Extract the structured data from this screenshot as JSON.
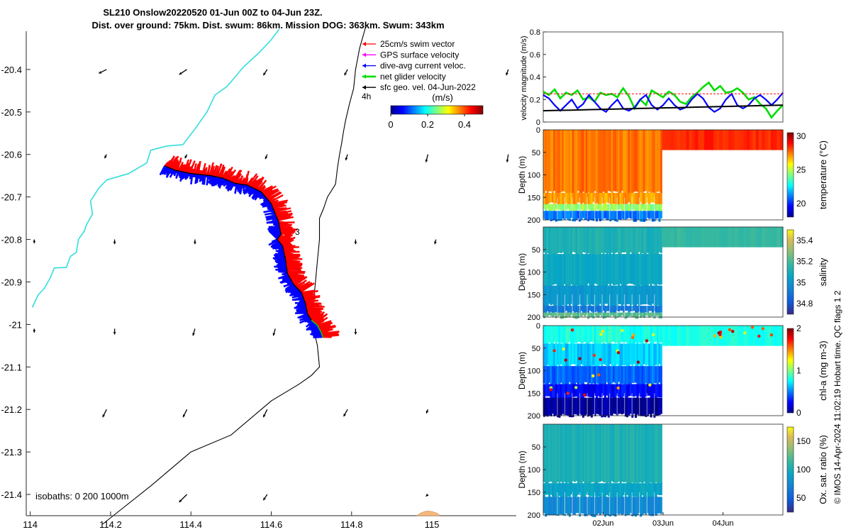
{
  "title": {
    "line1": "SL210 Onslow20220520 01-Jun 00Z to 04-Jun 23Z.",
    "line2": "Dist. over ground: 75km. Dist. swum: 86km. Mission DOG: 363km. Swum: 343km"
  },
  "copyright": "© IMOS 14-Apr-2024 11:02:19 Hobart time. QC flags 1  2",
  "colors": {
    "swim_vector": "#ff0000",
    "gps_velocity": "#ff00ff",
    "dive_avg_current": "#0000ff",
    "net_glider_velocity": "#00dd00",
    "sfc_geo_velocity": "#000000",
    "coastline": "#33dddd",
    "isobath": "#000000"
  },
  "chart_data": [
    {
      "type": "scatter",
      "panel": "map",
      "x": {
        "ticks": [
          114,
          114.2,
          114.4,
          114.6,
          114.8,
          115
        ],
        "lim": [
          113.99,
          115.21
        ]
      },
      "y": {
        "ticks": [
          -20.4,
          -20.5,
          -20.6,
          -20.7,
          -20.8,
          -20.9,
          -21,
          -21.1,
          -21.2,
          -21.3,
          -21.4
        ],
        "lim": [
          -21.45,
          -20.31
        ]
      },
      "legend": {
        "placement": "top-right",
        "entries": [
          "25cm/s swim vector",
          "GPS surface velocity",
          "dive-avg current veloc.",
          "net glider velocity",
          "sfc geo. vel. 04-Jun-2022"
        ]
      },
      "colorbar": {
        "title": "(m/s)",
        "ticks": [
          0,
          0.2,
          0.4
        ],
        "lim": [
          0,
          0.5
        ]
      },
      "annotations": {
        "time_step": "4h",
        "day_marker": "3",
        "isobaths": "isobaths: 0   200  1000m"
      },
      "glider_track": [
        [
          114.335,
          -20.627
        ],
        [
          114.36,
          -20.637
        ],
        [
          114.4,
          -20.645
        ],
        [
          114.45,
          -20.65
        ],
        [
          114.48,
          -20.656
        ],
        [
          114.51,
          -20.668
        ],
        [
          114.54,
          -20.672
        ],
        [
          114.575,
          -20.688
        ],
        [
          114.6,
          -20.716
        ],
        [
          114.618,
          -20.758
        ],
        [
          114.624,
          -20.788
        ],
        [
          114.615,
          -20.8
        ],
        [
          114.628,
          -20.815
        ],
        [
          114.635,
          -20.845
        ],
        [
          114.64,
          -20.88
        ],
        [
          114.655,
          -20.905
        ],
        [
          114.675,
          -20.925
        ],
        [
          114.685,
          -20.95
        ],
        [
          114.69,
          -20.975
        ],
        [
          114.7,
          -20.99
        ],
        [
          114.715,
          -21.002
        ],
        [
          114.725,
          -21.02
        ],
        [
          114.728,
          -21.03
        ]
      ],
      "coastline": [
        [
          114.62,
          -20.305
        ],
        [
          114.6,
          -20.33
        ],
        [
          114.57,
          -20.36
        ],
        [
          114.53,
          -20.395
        ],
        [
          114.49,
          -20.44
        ],
        [
          114.46,
          -20.46
        ],
        [
          114.44,
          -20.5
        ],
        [
          114.41,
          -20.54
        ],
        [
          114.38,
          -20.577
        ],
        [
          114.34,
          -20.58
        ],
        [
          114.3,
          -20.59
        ],
        [
          114.29,
          -20.62
        ],
        [
          114.245,
          -20.645
        ],
        [
          114.19,
          -20.66
        ],
        [
          114.17,
          -20.68
        ],
        [
          114.15,
          -20.71
        ],
        [
          114.155,
          -20.74
        ],
        [
          114.14,
          -20.765
        ],
        [
          114.135,
          -20.78
        ],
        [
          114.12,
          -20.8
        ],
        [
          114.115,
          -20.83
        ],
        [
          114.1,
          -20.84
        ],
        [
          114.09,
          -20.866
        ],
        [
          114.06,
          -20.867
        ],
        [
          114.05,
          -20.89
        ],
        [
          114.035,
          -20.915
        ],
        [
          114.02,
          -20.93
        ],
        [
          114.005,
          -20.96
        ]
      ],
      "isobath": [
        [
          114.835,
          -20.3
        ],
        [
          114.82,
          -20.35
        ],
        [
          114.81,
          -20.4
        ],
        [
          114.805,
          -20.445
        ],
        [
          114.795,
          -20.48
        ],
        [
          114.785,
          -20.52
        ],
        [
          114.78,
          -20.545
        ],
        [
          114.775,
          -20.575
        ],
        [
          114.77,
          -20.6
        ],
        [
          114.765,
          -20.63
        ],
        [
          114.76,
          -20.67
        ],
        [
          114.74,
          -20.7
        ],
        [
          114.73,
          -20.728
        ],
        [
          114.72,
          -20.75
        ],
        [
          114.72,
          -20.8
        ],
        [
          114.715,
          -20.85
        ],
        [
          114.71,
          -20.9
        ],
        [
          114.705,
          -20.95
        ],
        [
          114.69,
          -20.97
        ],
        [
          114.7,
          -21
        ],
        [
          114.71,
          -21.03
        ],
        [
          114.715,
          -21.05
        ],
        [
          114.72,
          -21.1
        ],
        [
          114.7,
          -21.12
        ],
        [
          114.67,
          -21.14
        ],
        [
          114.6,
          -21.18
        ],
        [
          114.5,
          -21.26
        ],
        [
          114.4,
          -21.3
        ],
        [
          114.3,
          -21.38
        ],
        [
          114.22,
          -21.44
        ],
        [
          114.18,
          -21.47
        ]
      ],
      "current_vectors": [
        [
          114.19,
          -20.4,
          -0.02,
          -0.01
        ],
        [
          114.39,
          -20.4,
          -0.02,
          -0.013
        ],
        [
          114.59,
          -20.4,
          -0.01,
          -0.015
        ],
        [
          114.79,
          -20.4,
          -0.008,
          -0.015
        ],
        [
          115.19,
          -20.4,
          -0.005,
          -0.015
        ],
        [
          114.19,
          -20.6,
          -0.005,
          -0.01
        ],
        [
          114.39,
          -20.6,
          -0.005,
          -0.01
        ],
        [
          114.59,
          -20.6,
          -0.005,
          -0.012
        ],
        [
          114.79,
          -20.6,
          -0.005,
          -0.015
        ],
        [
          114.99,
          -20.6,
          -0.005,
          -0.02
        ],
        [
          115.19,
          -20.6,
          -0.003,
          -0.02
        ],
        [
          114.01,
          -20.8,
          0,
          -0.01
        ],
        [
          114.21,
          -20.8,
          0,
          -0.012
        ],
        [
          114.41,
          -20.8,
          0,
          -0.012
        ],
        [
          114.81,
          -20.8,
          0,
          -0.012
        ],
        [
          115.01,
          -20.8,
          -0.003,
          -0.012
        ],
        [
          114.01,
          -21.01,
          0,
          -0.01
        ],
        [
          114.21,
          -21.01,
          0,
          -0.015
        ],
        [
          114.41,
          -21.01,
          -0.005,
          -0.018
        ],
        [
          114.61,
          -21.01,
          -0.005,
          -0.018
        ],
        [
          114.81,
          -21.01,
          0,
          -0.015
        ],
        [
          114.19,
          -21.2,
          -0.01,
          -0.02
        ],
        [
          114.39,
          -21.2,
          -0.01,
          -0.02
        ],
        [
          114.59,
          -21.2,
          -0.01,
          -0.02
        ],
        [
          114.79,
          -21.2,
          -0.01,
          -0.018
        ],
        [
          114.99,
          -21.2,
          -0.004,
          -0.01
        ],
        [
          114.39,
          -21.4,
          -0.02,
          -0.02
        ],
        [
          114.59,
          -21.4,
          -0.01,
          -0.015
        ],
        [
          114.99,
          -21.4,
          -0.005,
          -0.005
        ]
      ]
    },
    {
      "type": "line",
      "panel": "velocity",
      "ylabel": "velocity magnitude (m/s)",
      "ylim": [
        0,
        0.8
      ],
      "yticks": [
        0,
        0.2,
        0.4,
        0.6,
        0.8
      ],
      "xlim": [
        0,
        4
      ],
      "series": [
        {
          "color": "#00dd00",
          "values": [
            0.27,
            0.24,
            0.29,
            0.21,
            0.26,
            0.24,
            0.28,
            0.2,
            0.22,
            0.18,
            0.26,
            0.24,
            0.25,
            0.22,
            0.3,
            0.23,
            0.12,
            0.2,
            0.15,
            0.28,
            0.25,
            0.22,
            0.27,
            0.24,
            0.18,
            0.16,
            0.22,
            0.26,
            0.31,
            0.35,
            0.28,
            0.32,
            0.26,
            0.27,
            0.3,
            0.26,
            0.2,
            0.22,
            0.16,
            0.12,
            0.04,
            0.1,
            0.15
          ]
        },
        {
          "color": "#0000ff",
          "values": [
            0.24,
            0.21,
            0.15,
            0.1,
            0.15,
            0.2,
            0.12,
            0.16,
            0.24,
            0.18,
            0.12,
            0.09,
            0.15,
            0.2,
            0.12,
            0.1,
            0.13,
            0.2,
            0.24,
            0.15,
            0.11,
            0.15,
            0.21,
            0.15,
            0.11,
            0.13,
            0.2,
            0.25,
            0.21,
            0.13,
            0.09,
            0.12,
            0.2,
            0.25,
            0.15,
            0.12,
            0.15,
            0.21,
            0.24,
            0.2,
            0.15,
            0.2,
            0.26
          ]
        },
        {
          "color": "#ff0000",
          "values": [
            0.25,
            0.25,
            0.25,
            0.25,
            0.25,
            0.25,
            0.25,
            0.25,
            0.25,
            0.25,
            0.25,
            0.25,
            0.25,
            0.25,
            0.25,
            0.25,
            0.25,
            0.25,
            0.25,
            0.25,
            0.25,
            0.25,
            0.25,
            0.25,
            0.25,
            0.25,
            0.25,
            0.25,
            0.25,
            0.25,
            0.25,
            0.25,
            0.25,
            0.25,
            0.25,
            0.25,
            0.25,
            0.25,
            0.25,
            0.25,
            0.25,
            0.25,
            0.25
          ]
        },
        {
          "color": "#000000",
          "values": [
            0.1,
            0.102,
            0.104,
            0.106,
            0.108,
            0.11,
            0.112,
            0.114,
            0.116,
            0.118,
            0.12,
            0.122,
            0.124,
            0.126,
            0.128,
            0.13,
            0.132,
            0.134,
            0.136,
            0.138,
            0.14,
            0.142,
            0.144,
            0.146,
            0.148,
            0.15
          ]
        }
      ]
    },
    {
      "type": "heatmap",
      "panel": "temperature",
      "ylabel": "Depth (m)",
      "yticks": [
        0,
        50,
        100,
        150,
        200
      ],
      "ylim": [
        0,
        200
      ],
      "colorbar": {
        "label": "temperature (°C)",
        "ticks": [
          20,
          25,
          30
        ],
        "lim": [
          18,
          30.5
        ]
      },
      "deep_profiles_until_day": 1.98,
      "after_gap_depth": 45,
      "layers": [
        [
          0,
          140,
          27.5
        ],
        [
          140,
          165,
          27
        ],
        [
          165,
          180,
          24.5
        ],
        [
          180,
          200,
          21
        ]
      ],
      "after_gap_value": 28.5
    },
    {
      "type": "heatmap",
      "panel": "salinity",
      "ylabel": "Depth (m)",
      "yticks": [
        50,
        100,
        150,
        200
      ],
      "ylim": [
        0,
        200
      ],
      "colorbar": {
        "label": "salinity",
        "ticks": [
          34.8,
          35,
          35.2,
          35.4
        ],
        "lim": [
          34.7,
          35.5
        ]
      },
      "deep_profiles_until_day": 1.98,
      "after_gap_depth": 45,
      "layers": [
        [
          0,
          60,
          35.1
        ],
        [
          60,
          130,
          35.05
        ],
        [
          130,
          175,
          35.0
        ],
        [
          175,
          190,
          34.9
        ],
        [
          190,
          200,
          35.2
        ]
      ],
      "after_gap_value": 35.15
    },
    {
      "type": "heatmap",
      "panel": "chlorophyll",
      "ylabel": "Depth (m)",
      "yticks": [
        0,
        50,
        100,
        150,
        200
      ],
      "ylim": [
        0,
        200
      ],
      "colorbar": {
        "label": "chl-a (mg m-3)",
        "ticks": [
          0,
          1,
          2
        ],
        "lim": [
          0,
          2
        ]
      },
      "deep_profiles_until_day": 1.98,
      "after_gap_depth": 45,
      "layers": [
        [
          0,
          40,
          0.8
        ],
        [
          40,
          90,
          0.65
        ],
        [
          90,
          130,
          0.45
        ],
        [
          130,
          160,
          0.25
        ],
        [
          160,
          200,
          0.05
        ]
      ],
      "after_gap_value": 0.8
    },
    {
      "type": "heatmap",
      "panel": "oxygen",
      "ylabel": "Depth (m)",
      "yticks": [
        50,
        100,
        150,
        200
      ],
      "ylim": [
        0,
        200
      ],
      "colorbar": {
        "label": "Ox. sat. ratio (%)",
        "ticks": [
          50,
          100,
          150
        ],
        "lim": [
          25,
          175
        ]
      },
      "deep_profiles_until_day": 1.98,
      "after_gap_depth": 200,
      "layers": [
        [
          0,
          130,
          100
        ],
        [
          130,
          160,
          88
        ],
        [
          160,
          200,
          72
        ]
      ],
      "after_gap_value": null
    }
  ],
  "time_axis": {
    "lim": [
      0,
      4
    ],
    "ticks": [
      1,
      2,
      3
    ],
    "tick_labels": [
      "02Jun",
      "03Jun",
      "04Jun"
    ]
  }
}
